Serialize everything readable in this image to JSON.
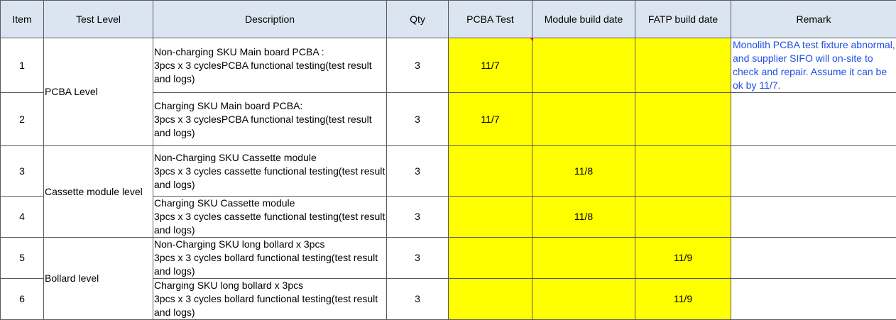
{
  "headers": {
    "item": "Item",
    "test_level": "Test Level",
    "description": "Description",
    "qty": "Qty",
    "pcba_test": "PCBA Test",
    "module_build_date": "Module build date",
    "fatp_build_date": "FATP build date",
    "remark": "Remark"
  },
  "levels": {
    "pcba": "PCBA Level",
    "cassette": "Cassette module level",
    "bollard": "Bollard level"
  },
  "rows": [
    {
      "item": "1",
      "description": "Non-charging  SKU Main board PCBA :\n 3pcs x 3 cyclesPCBA  functional testing(test result and logs)",
      "qty": "3",
      "pcba_test": "11/7",
      "module_build": "",
      "fatp_build": ""
    },
    {
      "item": "2",
      "description": "Charging SKU  Main board  PCBA:\n 3pcs x 3 cyclesPCBA  functional testing(test result and logs)",
      "qty": "3",
      "pcba_test": "11/7",
      "module_build": "",
      "fatp_build": ""
    },
    {
      "item": "3",
      "description": "Non-Charging SKU Cassette module\n 3pcs x 3 cycles cassette functional testing(test result and logs)",
      "qty": "3",
      "pcba_test": "",
      "module_build": "11/8",
      "fatp_build": ""
    },
    {
      "item": "4",
      "description": "Charging SKU Cassette module\n 3pcs x 3 cycles cassette functional testing(test result and logs)",
      "qty": "3",
      "pcba_test": "",
      "module_build": "11/8",
      "fatp_build": ""
    },
    {
      "item": "5",
      "description": "Non-Charging  SKU long bollard x 3pcs\n 3pcs x 3 cycles bollard functional testing(test result and logs)",
      "qty": "3",
      "pcba_test": "",
      "module_build": "",
      "fatp_build": "11/9"
    },
    {
      "item": "6",
      "description": "Charging  SKU long bollard x 3pcs\n 3pcs x 3 cycles bollard functional testing(test result and logs)",
      "qty": "3",
      "pcba_test": "",
      "module_build": "",
      "fatp_build": "11/9"
    }
  ],
  "remark_row1": "Monolith PCBA test fixture abnormal, and supplier SIFO will on-site to check and repair. Assume it can be ok by 11/7.",
  "colors": {
    "header_bg": "#dbe5f1",
    "highlight": "#ffff00",
    "remark_text": "#1f4fe8",
    "border": "#5a5a5a"
  }
}
